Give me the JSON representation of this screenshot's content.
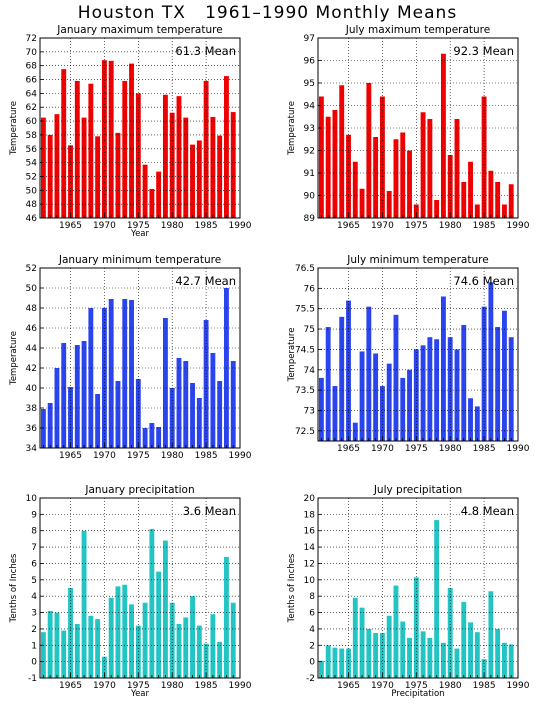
{
  "page": {
    "title": "Houston TX   1961–1990 Monthly Means"
  },
  "chart_data": [
    {
      "type": "bar",
      "title": "January maximum temperature",
      "xlabel": "Year",
      "ylabel": "Temperature",
      "mean_label": "61.3 Mean",
      "color": "#ee0000",
      "xlim": [
        1960.5,
        1990
      ],
      "ylim": [
        46,
        72
      ],
      "yticks": [
        46,
        48,
        50,
        52,
        54,
        56,
        58,
        60,
        62,
        64,
        66,
        68,
        70,
        72
      ],
      "xticks": [
        1965,
        1970,
        1975,
        1980,
        1985,
        1990
      ],
      "grid": true,
      "x": [
        1961,
        1962,
        1963,
        1964,
        1965,
        1966,
        1967,
        1968,
        1969,
        1970,
        1971,
        1972,
        1973,
        1974,
        1975,
        1976,
        1977,
        1978,
        1979,
        1980,
        1981,
        1982,
        1983,
        1984,
        1985,
        1986,
        1987,
        1988,
        1989
      ],
      "values": [
        60.5,
        58.0,
        61.0,
        67.5,
        56.5,
        65.8,
        60.5,
        65.4,
        57.8,
        68.8,
        68.7,
        58.3,
        65.8,
        68.3,
        64.0,
        53.7,
        50.2,
        52.7,
        63.8,
        61.2,
        63.6,
        60.5,
        56.6,
        57.2,
        65.8,
        60.6,
        57.9,
        66.5,
        61.3
      ]
    },
    {
      "type": "bar",
      "title": "July maximum temperature",
      "xlabel": "",
      "ylabel": "Temperature",
      "mean_label": "92.3 Mean",
      "color": "#ee0000",
      "xlim": [
        1960.5,
        1990
      ],
      "ylim": [
        89,
        97
      ],
      "yticks": [
        89,
        90,
        91,
        92,
        93,
        94,
        95,
        96,
        97
      ],
      "xticks": [
        1965,
        1970,
        1975,
        1980,
        1985,
        1990
      ],
      "grid": true,
      "x": [
        1961,
        1962,
        1963,
        1964,
        1965,
        1966,
        1967,
        1968,
        1969,
        1970,
        1971,
        1972,
        1973,
        1974,
        1975,
        1976,
        1977,
        1978,
        1979,
        1980,
        1981,
        1982,
        1983,
        1984,
        1985,
        1986,
        1987,
        1988,
        1989
      ],
      "values": [
        94.4,
        93.5,
        93.8,
        94.9,
        92.7,
        91.5,
        90.3,
        95.0,
        92.6,
        94.4,
        90.2,
        92.5,
        92.8,
        92.0,
        89.6,
        93.7,
        93.4,
        89.8,
        96.3,
        91.8,
        93.4,
        90.6,
        91.5,
        89.6,
        94.4,
        91.1,
        90.6,
        89.6,
        90.5
      ]
    },
    {
      "type": "bar",
      "title": "January minimum temperature",
      "xlabel": "",
      "ylabel": "Temperature",
      "mean_label": "42.7 Mean",
      "color": "#2b45ee",
      "xlim": [
        1960.5,
        1990
      ],
      "ylim": [
        34,
        52
      ],
      "yticks": [
        34,
        36,
        38,
        40,
        42,
        44,
        46,
        48,
        50,
        52
      ],
      "xticks": [
        1965,
        1970,
        1975,
        1980,
        1985,
        1990
      ],
      "grid": true,
      "x": [
        1961,
        1962,
        1963,
        1964,
        1965,
        1966,
        1967,
        1968,
        1969,
        1970,
        1971,
        1972,
        1973,
        1974,
        1975,
        1976,
        1977,
        1978,
        1979,
        1980,
        1981,
        1982,
        1983,
        1984,
        1985,
        1986,
        1987,
        1988,
        1989
      ],
      "values": [
        37.9,
        38.5,
        42.0,
        44.5,
        40.1,
        44.3,
        44.7,
        48.0,
        39.4,
        48.0,
        48.9,
        40.7,
        48.9,
        48.8,
        40.9,
        36.0,
        36.5,
        36.1,
        47.0,
        40.0,
        43.0,
        42.7,
        40.5,
        39.0,
        46.8,
        43.5,
        40.7,
        50.0,
        42.7
      ]
    },
    {
      "type": "bar",
      "title": "July minimum temperature",
      "xlabel": "",
      "ylabel": "Temperature",
      "mean_label": "74.6 Mean",
      "color": "#2b45ee",
      "xlim": [
        1960.5,
        1990
      ],
      "ylim": [
        72.25,
        76.5
      ],
      "yticks": [
        72.5,
        73,
        73.5,
        74,
        74.5,
        75,
        75.5,
        76,
        76.5
      ],
      "yticklabels": [
        "72.5",
        "73",
        "73.5",
        "74",
        "74.5",
        "75",
        "75.5",
        "76",
        "76.5"
      ],
      "xticks": [
        1965,
        1970,
        1975,
        1980,
        1985,
        1990
      ],
      "grid": true,
      "x": [
        1961,
        1962,
        1963,
        1964,
        1965,
        1966,
        1967,
        1968,
        1969,
        1970,
        1971,
        1972,
        1973,
        1974,
        1975,
        1976,
        1977,
        1978,
        1979,
        1980,
        1981,
        1982,
        1983,
        1984,
        1985,
        1986,
        1987,
        1988,
        1989
      ],
      "values": [
        73.8,
        75.05,
        73.6,
        75.3,
        75.7,
        72.7,
        74.45,
        75.55,
        74.4,
        73.6,
        74.15,
        75.35,
        73.8,
        74.0,
        74.5,
        74.6,
        74.8,
        74.75,
        75.8,
        74.8,
        74.5,
        75.1,
        73.3,
        73.1,
        75.55,
        76.15,
        75.05,
        75.45,
        74.8
      ]
    },
    {
      "type": "bar",
      "title": "January precipitation",
      "xlabel": "Year",
      "ylabel": "Tenths of Inches",
      "mean_label": "3.6  Mean",
      "color": "#22c4c4",
      "xlim": [
        1960.5,
        1990
      ],
      "ylim": [
        -1,
        10
      ],
      "yticks": [
        -1,
        0,
        1,
        2,
        3,
        4,
        5,
        6,
        7,
        8,
        9,
        10
      ],
      "xticks": [
        1965,
        1970,
        1975,
        1980,
        1985,
        1990
      ],
      "grid": true,
      "x": [
        1961,
        1962,
        1963,
        1964,
        1965,
        1966,
        1967,
        1968,
        1969,
        1970,
        1971,
        1972,
        1973,
        1974,
        1975,
        1976,
        1977,
        1978,
        1979,
        1980,
        1981,
        1982,
        1983,
        1984,
        1985,
        1986,
        1987,
        1988,
        1989
      ],
      "values": [
        1.8,
        3.1,
        3.0,
        1.9,
        4.5,
        2.3,
        8.0,
        2.8,
        2.6,
        0.3,
        3.9,
        4.6,
        4.7,
        3.5,
        2.2,
        3.6,
        8.1,
        5.5,
        7.4,
        3.6,
        2.3,
        2.7,
        4.0,
        2.2,
        1.1,
        2.9,
        1.2,
        6.4,
        3.6
      ]
    },
    {
      "type": "bar",
      "title": "July precipitation",
      "xlabel": "Precipitation",
      "ylabel": "Tenths of Inches",
      "mean_label": "4.8  Mean",
      "color": "#22c4c4",
      "xlim": [
        1960.5,
        1990
      ],
      "ylim": [
        -2,
        20
      ],
      "yticks": [
        -2,
        0,
        2,
        4,
        6,
        8,
        10,
        12,
        14,
        16,
        18,
        20
      ],
      "xticks": [
        1965,
        1970,
        1975,
        1980,
        1985,
        1990
      ],
      "grid": true,
      "x": [
        1961,
        1962,
        1963,
        1964,
        1965,
        1966,
        1967,
        1968,
        1969,
        1970,
        1971,
        1972,
        1973,
        1974,
        1975,
        1976,
        1977,
        1978,
        1979,
        1980,
        1981,
        1982,
        1983,
        1984,
        1985,
        1986,
        1987,
        1988,
        1989
      ],
      "values": [
        0.1,
        2.0,
        1.7,
        1.6,
        1.6,
        7.8,
        6.6,
        4.0,
        3.5,
        3.5,
        5.6,
        9.3,
        4.9,
        2.9,
        10.3,
        3.7,
        2.9,
        17.3,
        2.3,
        9.0,
        1.6,
        7.3,
        4.8,
        3.6,
        0.3,
        8.6,
        4.0,
        2.3,
        2.1
      ]
    }
  ]
}
